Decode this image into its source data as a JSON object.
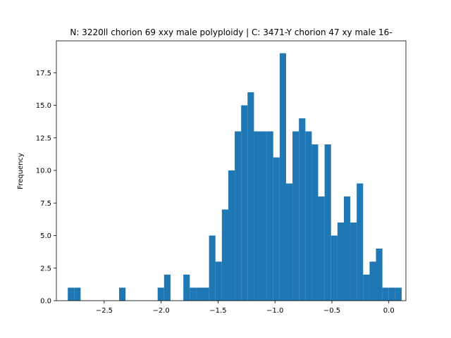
{
  "chart_data": {
    "type": "bar",
    "title": "N: 3220ll chorion 69 xxy male polyploidy | C: 3471-Y chorion 47 xy male 16-",
    "xlabel": "",
    "ylabel": "Frequency",
    "xlim": [
      -2.92,
      0.15
    ],
    "ylim": [
      0,
      19.95
    ],
    "xticks": [
      -2.5,
      -2.0,
      -1.5,
      -1.0,
      -0.5,
      0.0
    ],
    "xtick_labels": [
      "−2.5",
      "−2.0",
      "−1.5",
      "−1.0",
      "−0.5",
      "0.0"
    ],
    "yticks": [
      0.0,
      2.5,
      5.0,
      7.5,
      10.0,
      12.5,
      15.0,
      17.5
    ],
    "ytick_labels": [
      "0.0",
      "2.5",
      "5.0",
      "7.5",
      "10.0",
      "12.5",
      "15.0",
      "17.5"
    ],
    "bin_start": -2.82,
    "bin_width": 0.0564,
    "counts": [
      1,
      1,
      0,
      0,
      0,
      0,
      0,
      0,
      1,
      0,
      0,
      0,
      0,
      0,
      1,
      2,
      0,
      0,
      2,
      1,
      1,
      1,
      5,
      3,
      7,
      10,
      13,
      15,
      16,
      13,
      13,
      13,
      11,
      19,
      9,
      13,
      14,
      13,
      12,
      8,
      12,
      5,
      6,
      8,
      6,
      9,
      2,
      3,
      4,
      1,
      1,
      1
    ],
    "bar_color": "#1f77b4",
    "grid": false,
    "legend": "none"
  }
}
